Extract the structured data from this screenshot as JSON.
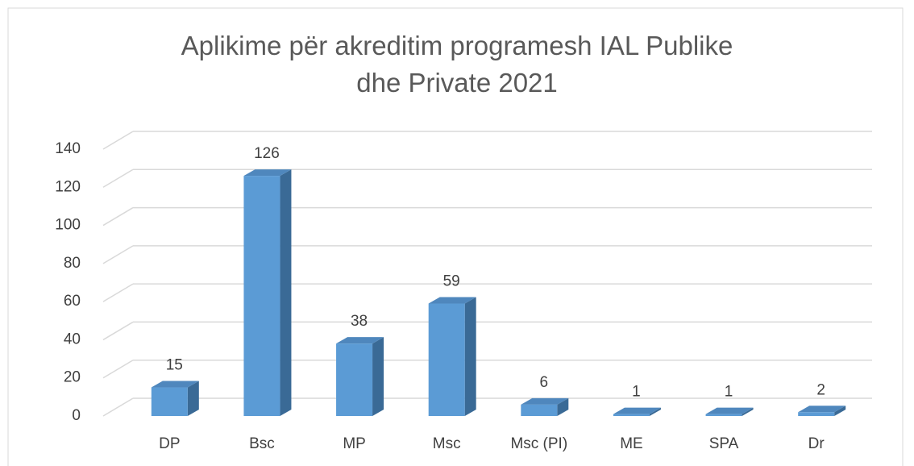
{
  "chart_data": {
    "type": "bar3d",
    "title": "Aplikime për akreditim programesh IAL Publike dhe Private 2021",
    "categories": [
      "DP",
      "Bsc",
      "MP",
      "Msc",
      "Msc (PI)",
      "ME",
      "SPA",
      "Dr"
    ],
    "values": [
      15,
      126,
      38,
      59,
      6,
      1,
      1,
      2
    ],
    "color": "#5b9bd5",
    "ylim": [
      0,
      140
    ],
    "yticks": [
      0,
      20,
      40,
      60,
      80,
      100,
      120,
      140
    ],
    "grid": true
  }
}
